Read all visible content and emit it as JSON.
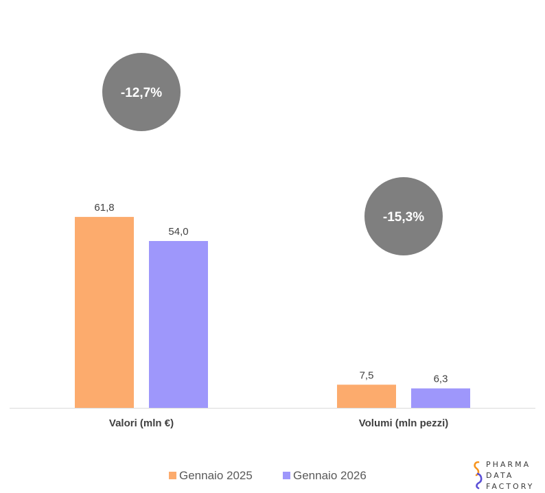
{
  "chart_data": {
    "type": "bar",
    "categories": [
      "Valori (mln €)",
      "Volumi (mln pezzi)"
    ],
    "series": [
      {
        "name": "Gennaio 2025",
        "values": [
          61.8,
          7.5
        ],
        "labels": [
          "61,8",
          "7,5"
        ],
        "color": "#fcab6d"
      },
      {
        "name": "Gennaio 2026",
        "values": [
          54.0,
          6.3
        ],
        "labels": [
          "54,0",
          "6,3"
        ],
        "color": "#9e97fb"
      }
    ],
    "annotations": [
      {
        "category": "Valori (mln €)",
        "text": "-12,7%",
        "color": "#7f7f7f",
        "text_color": "#ffffff"
      },
      {
        "category": "Volumi (mln pezzi)",
        "text": "-15,3%",
        "color": "#7f7f7f",
        "text_color": "#ffffff"
      }
    ],
    "ylim": [
      0,
      72
    ],
    "y_axis_visible": false,
    "grid": false,
    "legend_position": "bottom"
  },
  "logo": {
    "text": "PHARMA\nDATA\nFACTORY",
    "colors": [
      "#f7941d",
      "#5b4fd6"
    ]
  }
}
